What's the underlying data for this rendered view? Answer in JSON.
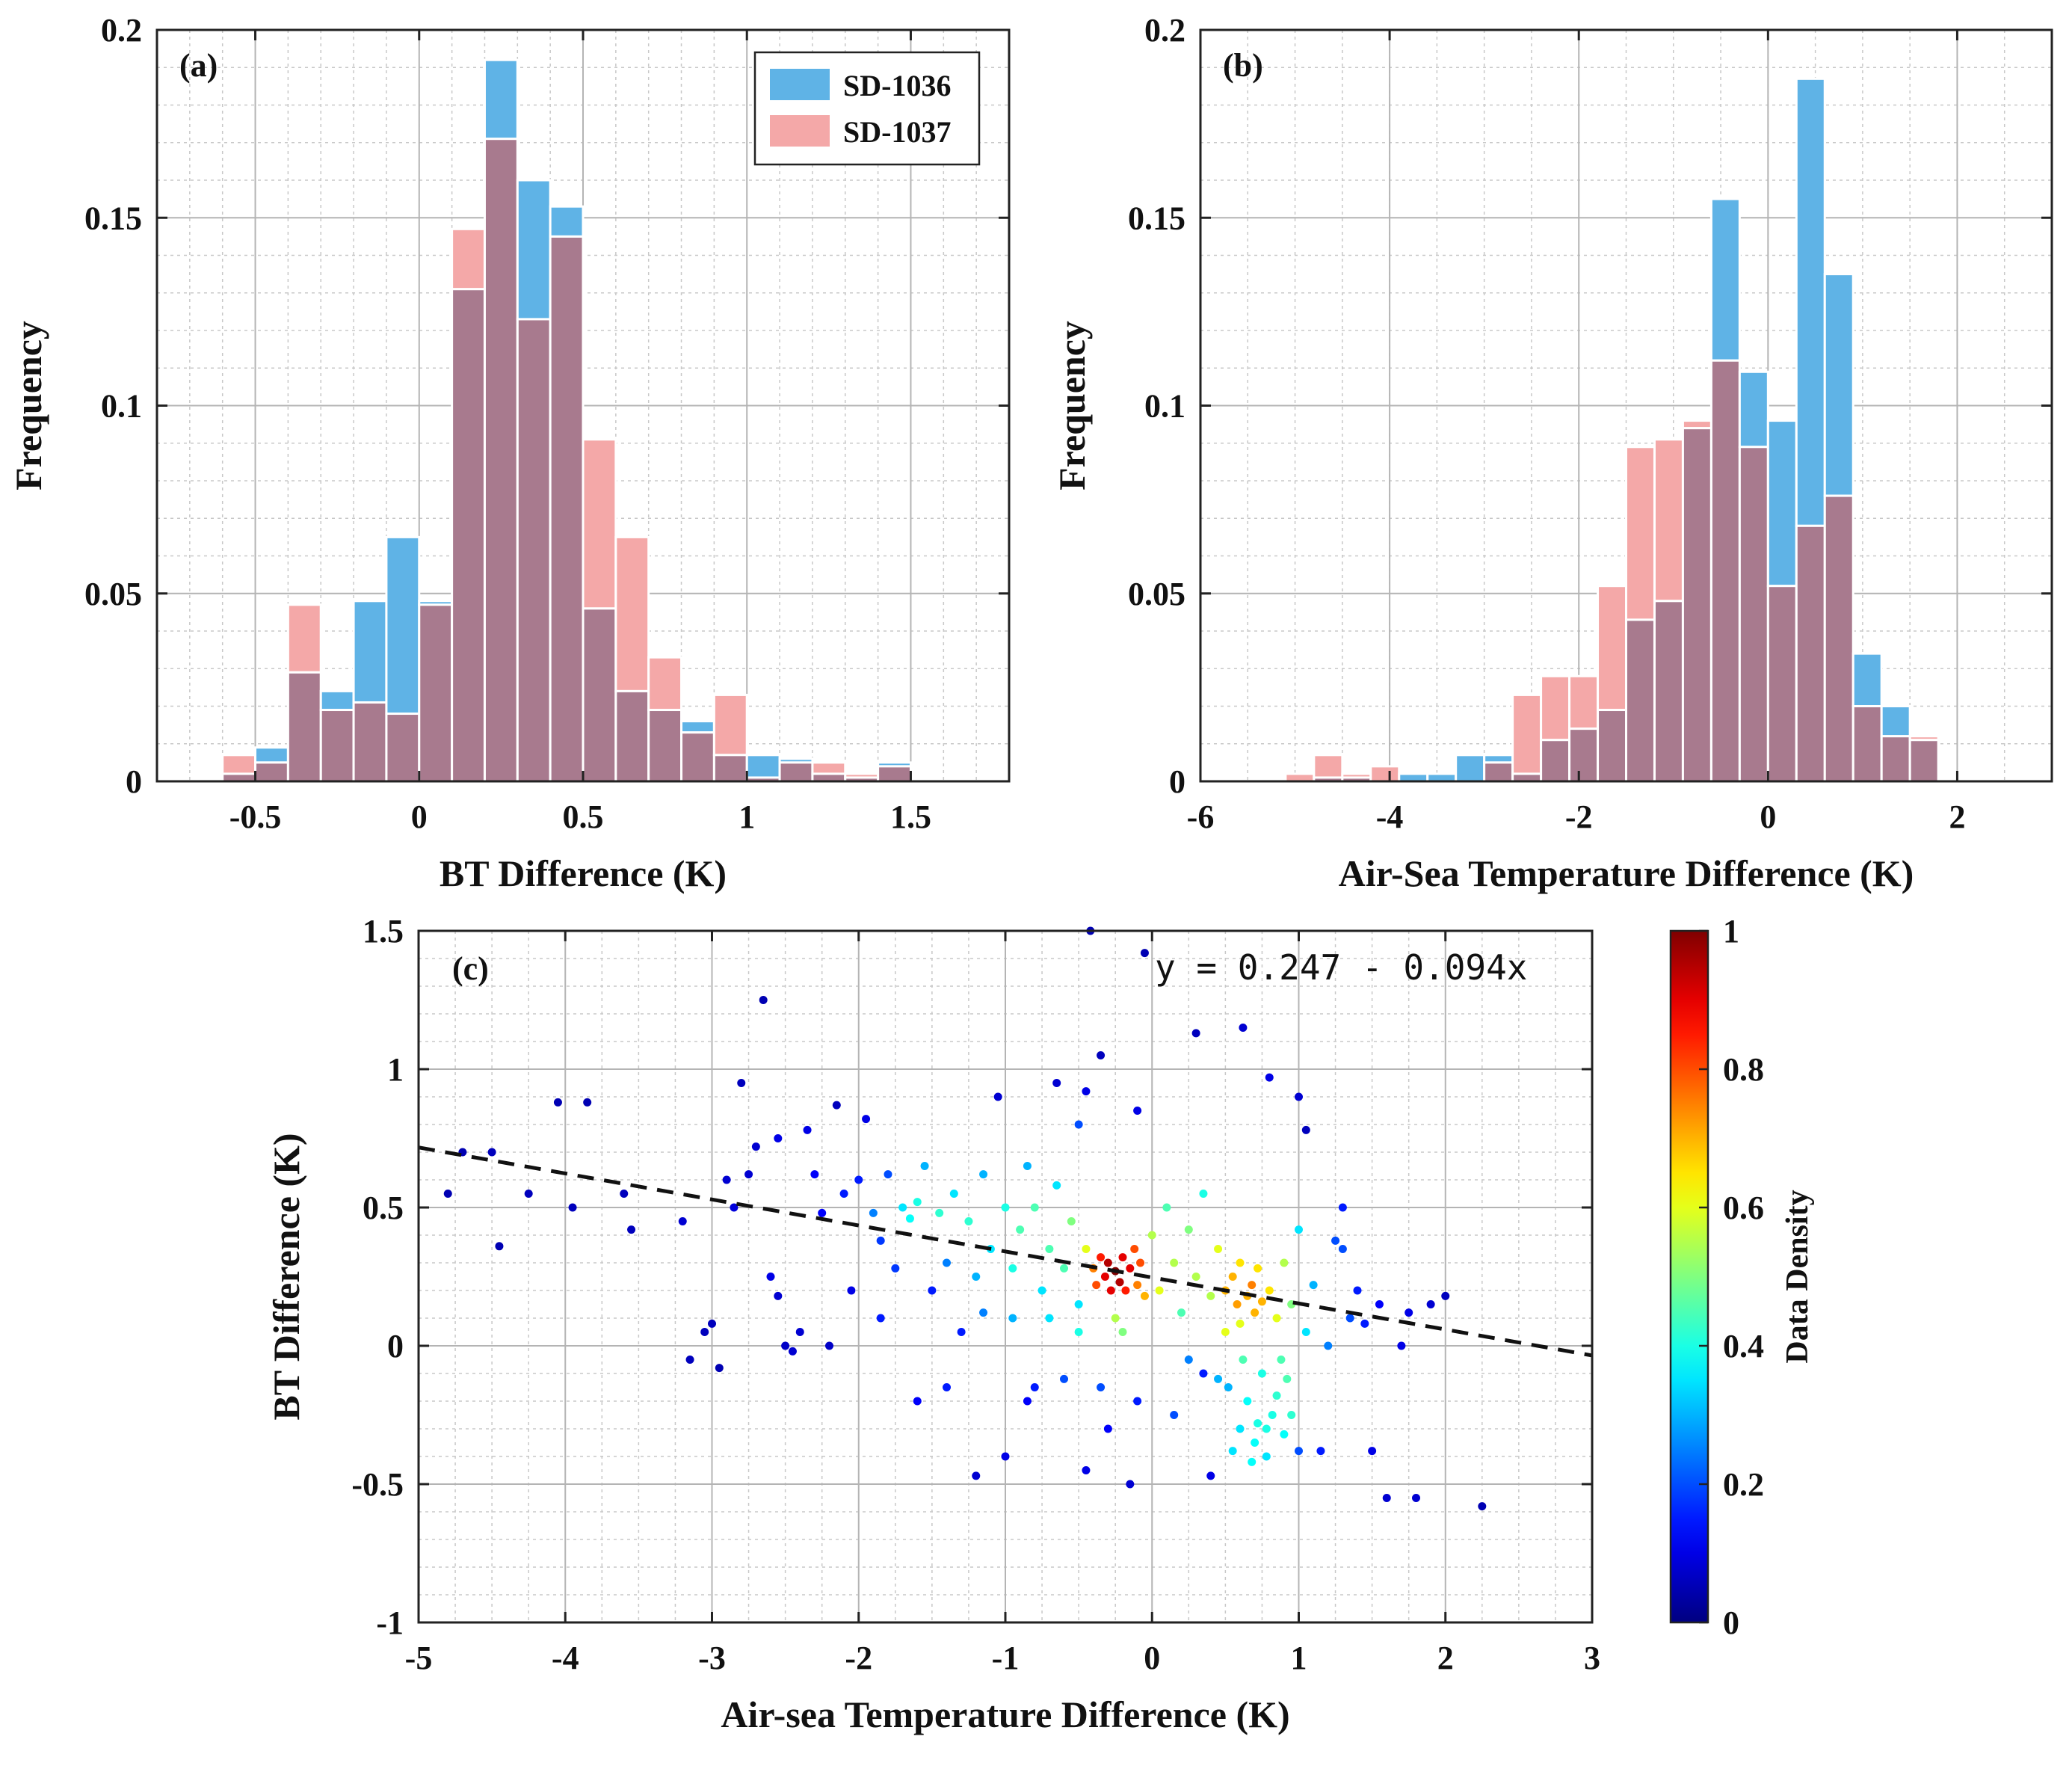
{
  "chart_data": [
    {
      "id": "a",
      "type": "bar",
      "panel_label": "(a)",
      "xlabel": "BT Difference (K)",
      "ylabel": "Frequency",
      "xlim": [
        -0.8,
        1.8
      ],
      "ylim": [
        0,
        0.2
      ],
      "xticks": [
        -0.5,
        0,
        0.5,
        1,
        1.5
      ],
      "xtick_labels": [
        "-0.5",
        "0",
        "0.5",
        "1",
        "1.5"
      ],
      "yticks": [
        0,
        0.05,
        0.1,
        0.15,
        0.2
      ],
      "ytick_labels": [
        "0",
        "0.05",
        "0.1",
        "0.15",
        "0.2"
      ],
      "bin_width": 0.1,
      "bin_centers": [
        -0.55,
        -0.45,
        -0.35,
        -0.25,
        -0.15,
        -0.05,
        0.05,
        0.15,
        0.25,
        0.35,
        0.45,
        0.55,
        0.65,
        0.75,
        0.85,
        0.95,
        1.05,
        1.15,
        1.25,
        1.35,
        1.45
      ],
      "series": [
        {
          "name": "SD-1036",
          "color": "#5fb3e6",
          "values": [
            0.002,
            0.009,
            0.029,
            0.024,
            0.048,
            0.065,
            0.048,
            0.131,
            0.192,
            0.16,
            0.153,
            0.046,
            0.024,
            0.019,
            0.016,
            0.007,
            0.007,
            0.006,
            0.002,
            0.001,
            0.005
          ]
        },
        {
          "name": "SD-1037",
          "color": "#f4a8a8",
          "values": [
            0.007,
            0.005,
            0.047,
            0.019,
            0.021,
            0.018,
            0.047,
            0.147,
            0.171,
            0.123,
            0.145,
            0.091,
            0.065,
            0.033,
            0.013,
            0.023,
            0.001,
            0.005,
            0.005,
            0.002,
            0.004
          ]
        }
      ],
      "overlap_color": "#a87a8e",
      "legend": [
        "SD-1036",
        "SD-1037"
      ],
      "legend_position": "top-right"
    },
    {
      "id": "b",
      "type": "bar",
      "panel_label": "(b)",
      "xlabel": "Air-Sea Temperature Difference (K)",
      "ylabel": "Frequency",
      "xlim": [
        -6,
        3
      ],
      "ylim": [
        0,
        0.2
      ],
      "xticks": [
        -6,
        -4,
        -2,
        0,
        2
      ],
      "xtick_labels": [
        "-6",
        "-4",
        "-2",
        "0",
        "2"
      ],
      "yticks": [
        0,
        0.05,
        0.1,
        0.15,
        0.2
      ],
      "ytick_labels": [
        "0",
        "0.05",
        "0.1",
        "0.15",
        "0.2"
      ],
      "bin_width": 0.3,
      "bin_centers": [
        -4.95,
        -4.65,
        -4.35,
        -4.05,
        -3.75,
        -3.45,
        -3.15,
        -2.85,
        -2.55,
        -2.25,
        -1.95,
        -1.65,
        -1.35,
        -1.05,
        -0.75,
        -0.45,
        -0.15,
        0.15,
        0.45,
        0.75,
        1.05,
        1.35,
        1.65
      ],
      "series": [
        {
          "name": "SD-1036",
          "color": "#5fb3e6",
          "values": [
            0.0,
            0.001,
            0.001,
            0.0,
            0.002,
            0.002,
            0.007,
            0.007,
            0.002,
            0.011,
            0.014,
            0.019,
            0.043,
            0.048,
            0.094,
            0.155,
            0.109,
            0.096,
            0.187,
            0.135,
            0.034,
            0.02,
            0.011
          ]
        },
        {
          "name": "SD-1037",
          "color": "#f4a8a8",
          "values": [
            0.002,
            0.007,
            0.002,
            0.004,
            0.0,
            0.0,
            0.0,
            0.005,
            0.023,
            0.028,
            0.028,
            0.052,
            0.089,
            0.091,
            0.096,
            0.112,
            0.089,
            0.052,
            0.068,
            0.076,
            0.02,
            0.012,
            0.012
          ]
        }
      ],
      "overlap_color": "#a87a8e"
    },
    {
      "id": "c",
      "type": "scatter",
      "panel_label": "(c)",
      "xlabel": "Air-sea Temperature Difference (K)",
      "ylabel": "BT Difference (K)",
      "xlim": [
        -5,
        3
      ],
      "ylim": [
        -1,
        1.5
      ],
      "xticks": [
        -5,
        -4,
        -3,
        -2,
        -1,
        0,
        1,
        2,
        3
      ],
      "xtick_labels": [
        "-5",
        "-4",
        "-3",
        "-2",
        "-1",
        "0",
        "1",
        "2",
        "3"
      ],
      "yticks": [
        -1,
        -0.5,
        0,
        0.5,
        1,
        1.5
      ],
      "ytick_labels": [
        "-1",
        "-0.5",
        "0",
        "0.5",
        "1",
        "1.5"
      ],
      "fit": {
        "intercept": 0.247,
        "slope": -0.094,
        "equation": "y = 0.247 - 0.094x"
      },
      "colorbar": {
        "label": "Data Density",
        "range": [
          0,
          1
        ],
        "ticks": [
          0,
          0.2,
          0.4,
          0.6,
          0.8,
          1
        ],
        "tick_labels": [
          "0",
          "0.2",
          "0.4",
          "0.6",
          "0.8",
          "1"
        ],
        "colormap": "jet"
      },
      "points": [
        [
          -4.8,
          0.55,
          0.05
        ],
        [
          -4.7,
          0.7,
          0.05
        ],
        [
          -4.5,
          0.7,
          0.06
        ],
        [
          -4.45,
          0.36,
          0.05
        ],
        [
          -4.25,
          0.55,
          0.06
        ],
        [
          -4.05,
          0.88,
          0.05
        ],
        [
          -3.95,
          0.5,
          0.06
        ],
        [
          -3.85,
          0.88,
          0.05
        ],
        [
          -3.6,
          0.55,
          0.06
        ],
        [
          -3.55,
          0.42,
          0.06
        ],
        [
          -3.2,
          0.45,
          0.08
        ],
        [
          -3.15,
          -0.05,
          0.06
        ],
        [
          -3.05,
          0.05,
          0.06
        ],
        [
          -3.0,
          0.08,
          0.06
        ],
        [
          -2.95,
          -0.08,
          0.05
        ],
        [
          -2.9,
          0.6,
          0.08
        ],
        [
          -2.85,
          0.5,
          0.09
        ],
        [
          -2.8,
          0.95,
          0.06
        ],
        [
          -2.75,
          0.62,
          0.08
        ],
        [
          -2.65,
          1.25,
          0.05
        ],
        [
          -2.7,
          0.72,
          0.08
        ],
        [
          -2.6,
          0.25,
          0.1
        ],
        [
          -2.55,
          0.75,
          0.1
        ],
        [
          -2.55,
          0.18,
          0.08
        ],
        [
          -2.5,
          0.0,
          0.07
        ],
        [
          -2.45,
          -0.02,
          0.08
        ],
        [
          -2.4,
          0.05,
          0.08
        ],
        [
          -2.35,
          0.78,
          0.1
        ],
        [
          -2.3,
          0.62,
          0.12
        ],
        [
          -2.25,
          0.48,
          0.12
        ],
        [
          -2.2,
          0.0,
          0.07
        ],
        [
          -2.15,
          0.87,
          0.06
        ],
        [
          -2.1,
          0.55,
          0.15
        ],
        [
          -2.05,
          0.2,
          0.1
        ],
        [
          -2.0,
          0.6,
          0.15
        ],
        [
          -1.95,
          0.82,
          0.1
        ],
        [
          -1.9,
          0.48,
          0.25
        ],
        [
          -1.85,
          0.38,
          0.18
        ],
        [
          -1.8,
          0.62,
          0.2
        ],
        [
          -1.75,
          0.28,
          0.18
        ],
        [
          -1.7,
          0.5,
          0.35
        ],
        [
          -1.65,
          0.46,
          0.38
        ],
        [
          -1.6,
          0.52,
          0.4
        ],
        [
          -1.55,
          0.65,
          0.3
        ],
        [
          -1.5,
          0.2,
          0.15
        ],
        [
          -1.45,
          0.48,
          0.42
        ],
        [
          -1.4,
          0.3,
          0.25
        ],
        [
          -1.35,
          0.55,
          0.35
        ],
        [
          -1.3,
          0.05,
          0.15
        ],
        [
          -1.25,
          0.45,
          0.42
        ],
        [
          -1.2,
          0.25,
          0.3
        ],
        [
          -1.2,
          -0.47,
          0.08
        ],
        [
          -1.15,
          0.62,
          0.3
        ],
        [
          -1.1,
          0.35,
          0.35
        ],
        [
          -1.05,
          0.9,
          0.08
        ],
        [
          -1.0,
          0.5,
          0.4
        ],
        [
          -0.95,
          0.28,
          0.4
        ],
        [
          -0.9,
          0.42,
          0.45
        ],
        [
          -0.85,
          0.65,
          0.3
        ],
        [
          -0.85,
          -0.2,
          0.12
        ],
        [
          -0.8,
          0.5,
          0.45
        ],
        [
          -0.75,
          0.2,
          0.35
        ],
        [
          -0.7,
          0.35,
          0.45
        ],
        [
          -0.65,
          0.58,
          0.35
        ],
        [
          -0.6,
          0.28,
          0.45
        ],
        [
          -0.55,
          0.45,
          0.5
        ],
        [
          -0.5,
          0.8,
          0.2
        ],
        [
          -0.5,
          0.15,
          0.35
        ],
        [
          -0.45,
          0.35,
          0.6
        ],
        [
          -0.45,
          0.92,
          0.1
        ],
        [
          -0.4,
          0.28,
          0.75
        ],
        [
          -0.38,
          0.22,
          0.8
        ],
        [
          -0.35,
          0.32,
          0.85
        ],
        [
          -0.32,
          0.25,
          0.9
        ],
        [
          -0.3,
          0.3,
          0.95
        ],
        [
          -0.28,
          0.2,
          0.9
        ],
        [
          -0.25,
          0.27,
          1.0
        ],
        [
          -0.22,
          0.23,
          0.95
        ],
        [
          -0.2,
          0.32,
          0.9
        ],
        [
          -0.18,
          0.2,
          0.85
        ],
        [
          -0.15,
          0.28,
          0.9
        ],
        [
          -0.12,
          0.35,
          0.8
        ],
        [
          -0.1,
          0.22,
          0.75
        ],
        [
          -0.08,
          0.3,
          0.8
        ],
        [
          -0.05,
          0.18,
          0.7
        ],
        [
          -0.3,
          -0.3,
          0.12
        ],
        [
          -0.35,
          1.05,
          0.06
        ],
        [
          -0.42,
          1.5,
          0.05
        ],
        [
          -0.05,
          1.42,
          0.05
        ],
        [
          -0.1,
          0.85,
          0.1
        ],
        [
          0.0,
          0.4,
          0.55
        ],
        [
          0.05,
          0.2,
          0.6
        ],
        [
          0.1,
          0.5,
          0.45
        ],
        [
          0.15,
          0.3,
          0.55
        ],
        [
          0.2,
          0.12,
          0.45
        ],
        [
          0.25,
          0.42,
          0.5
        ],
        [
          0.3,
          0.25,
          0.55
        ],
        [
          0.3,
          1.13,
          0.06
        ],
        [
          0.35,
          0.55,
          0.4
        ],
        [
          0.35,
          -0.1,
          0.15
        ],
        [
          0.4,
          0.18,
          0.55
        ],
        [
          0.4,
          -0.47,
          0.1
        ],
        [
          0.45,
          0.35,
          0.6
        ],
        [
          0.5,
          0.2,
          0.7
        ],
        [
          0.52,
          -0.15,
          0.3
        ],
        [
          0.55,
          0.25,
          0.7
        ],
        [
          0.58,
          0.15,
          0.72
        ],
        [
          0.6,
          0.3,
          0.65
        ],
        [
          0.6,
          -0.3,
          0.35
        ],
        [
          0.62,
          1.15,
          0.08
        ],
        [
          0.65,
          0.18,
          0.7
        ],
        [
          0.65,
          -0.2,
          0.38
        ],
        [
          0.68,
          0.22,
          0.75
        ],
        [
          0.7,
          0.12,
          0.7
        ],
        [
          0.7,
          -0.35,
          0.38
        ],
        [
          0.72,
          0.28,
          0.65
        ],
        [
          0.75,
          -0.1,
          0.4
        ],
        [
          0.75,
          0.16,
          0.7
        ],
        [
          0.78,
          -0.4,
          0.35
        ],
        [
          0.8,
          0.2,
          0.65
        ],
        [
          0.82,
          -0.25,
          0.4
        ],
        [
          0.85,
          0.1,
          0.6
        ],
        [
          0.88,
          -0.05,
          0.45
        ],
        [
          0.9,
          0.3,
          0.55
        ],
        [
          0.9,
          -0.32,
          0.38
        ],
        [
          0.95,
          0.15,
          0.5
        ],
        [
          1.0,
          0.42,
          0.35
        ],
        [
          1.0,
          -0.38,
          0.2
        ],
        [
          1.05,
          0.05,
          0.35
        ],
        [
          1.1,
          0.22,
          0.3
        ],
        [
          1.15,
          -0.38,
          0.15
        ],
        [
          1.2,
          0.0,
          0.25
        ],
        [
          1.25,
          0.38,
          0.2
        ],
        [
          1.3,
          0.5,
          0.15
        ],
        [
          1.35,
          0.1,
          0.2
        ],
        [
          1.4,
          0.2,
          0.15
        ],
        [
          1.45,
          0.08,
          0.15
        ],
        [
          1.5,
          -0.38,
          0.1
        ],
        [
          1.55,
          0.15,
          0.12
        ],
        [
          1.6,
          -0.55,
          0.08
        ],
        [
          1.7,
          0.0,
          0.1
        ],
        [
          1.75,
          0.12,
          0.1
        ],
        [
          1.8,
          -0.55,
          0.08
        ],
        [
          1.9,
          0.15,
          0.08
        ],
        [
          2.0,
          0.18,
          0.06
        ],
        [
          2.25,
          -0.58,
          0.05
        ],
        [
          1.05,
          0.78,
          0.06
        ],
        [
          1.3,
          0.35,
          0.2
        ],
        [
          1.0,
          0.9,
          0.08
        ],
        [
          0.8,
          0.97,
          0.1
        ],
        [
          -0.65,
          0.95,
          0.08
        ],
        [
          -0.2,
          0.05,
          0.5
        ],
        [
          -0.25,
          0.1,
          0.55
        ],
        [
          -0.5,
          0.05,
          0.4
        ],
        [
          -0.7,
          0.1,
          0.35
        ],
        [
          -0.95,
          0.1,
          0.3
        ],
        [
          -1.15,
          0.12,
          0.25
        ],
        [
          -1.4,
          -0.15,
          0.15
        ],
        [
          -1.6,
          -0.2,
          0.12
        ],
        [
          -1.85,
          0.1,
          0.15
        ],
        [
          -0.6,
          -0.12,
          0.2
        ],
        [
          -0.35,
          -0.15,
          0.2
        ],
        [
          -0.1,
          -0.2,
          0.15
        ],
        [
          -0.8,
          -0.15,
          0.15
        ],
        [
          -1.0,
          -0.4,
          0.1
        ],
        [
          -0.45,
          -0.45,
          0.1
        ],
        [
          -0.15,
          -0.5,
          0.08
        ],
        [
          0.15,
          -0.25,
          0.2
        ],
        [
          0.25,
          -0.05,
          0.25
        ],
        [
          0.45,
          -0.12,
          0.3
        ],
        [
          0.55,
          -0.38,
          0.35
        ],
        [
          0.62,
          -0.05,
          0.45
        ],
        [
          0.68,
          -0.42,
          0.38
        ],
        [
          0.72,
          -0.28,
          0.4
        ],
        [
          0.78,
          -0.3,
          0.4
        ],
        [
          0.85,
          -0.18,
          0.42
        ],
        [
          0.92,
          -0.12,
          0.45
        ],
        [
          0.6,
          0.08,
          0.6
        ],
        [
          0.5,
          0.05,
          0.6
        ],
        [
          0.95,
          -0.25,
          0.42
        ]
      ]
    }
  ]
}
